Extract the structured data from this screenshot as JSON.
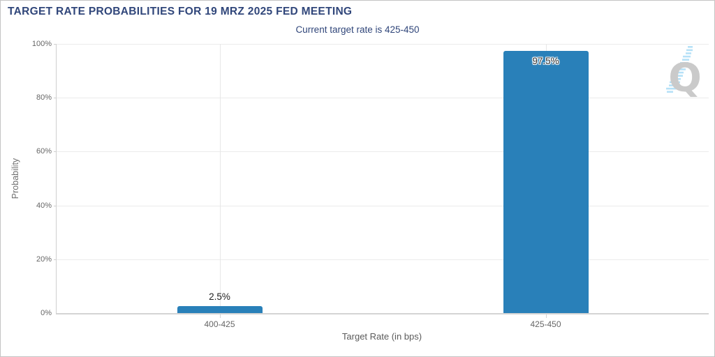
{
  "window": {
    "background": "#ffffff",
    "border_color": "#c4c4c4"
  },
  "header": {
    "title": "TARGET RATE PROBABILITIES FOR 19 MRZ 2025 FED MEETING",
    "subtitle": "Current target rate is 425-450",
    "title_color": "#30467a"
  },
  "chart_data": {
    "type": "bar",
    "title": "TARGET RATE PROBABILITIES FOR 19 MRZ 2025 FED MEETING",
    "subtitle": "Current target rate is 425-450",
    "categories": [
      "400-425",
      "425-450"
    ],
    "values": [
      2.5,
      97.5
    ],
    "value_labels": [
      "2.5%",
      "97.5%"
    ],
    "xlabel": "Target Rate (in bps)",
    "ylabel": "Probability",
    "ylim": [
      0,
      100
    ],
    "yticks": [
      0,
      20,
      40,
      60,
      80,
      100
    ],
    "ytick_labels": [
      "0%",
      "20%",
      "40%",
      "60%",
      "80%",
      "100%"
    ],
    "grid": true,
    "legend": "none",
    "bar_color": "#2980b9"
  },
  "watermark": {
    "letter": "Q",
    "letter_color": "#c8c8c8",
    "dash_color": "#b3e0f7"
  }
}
